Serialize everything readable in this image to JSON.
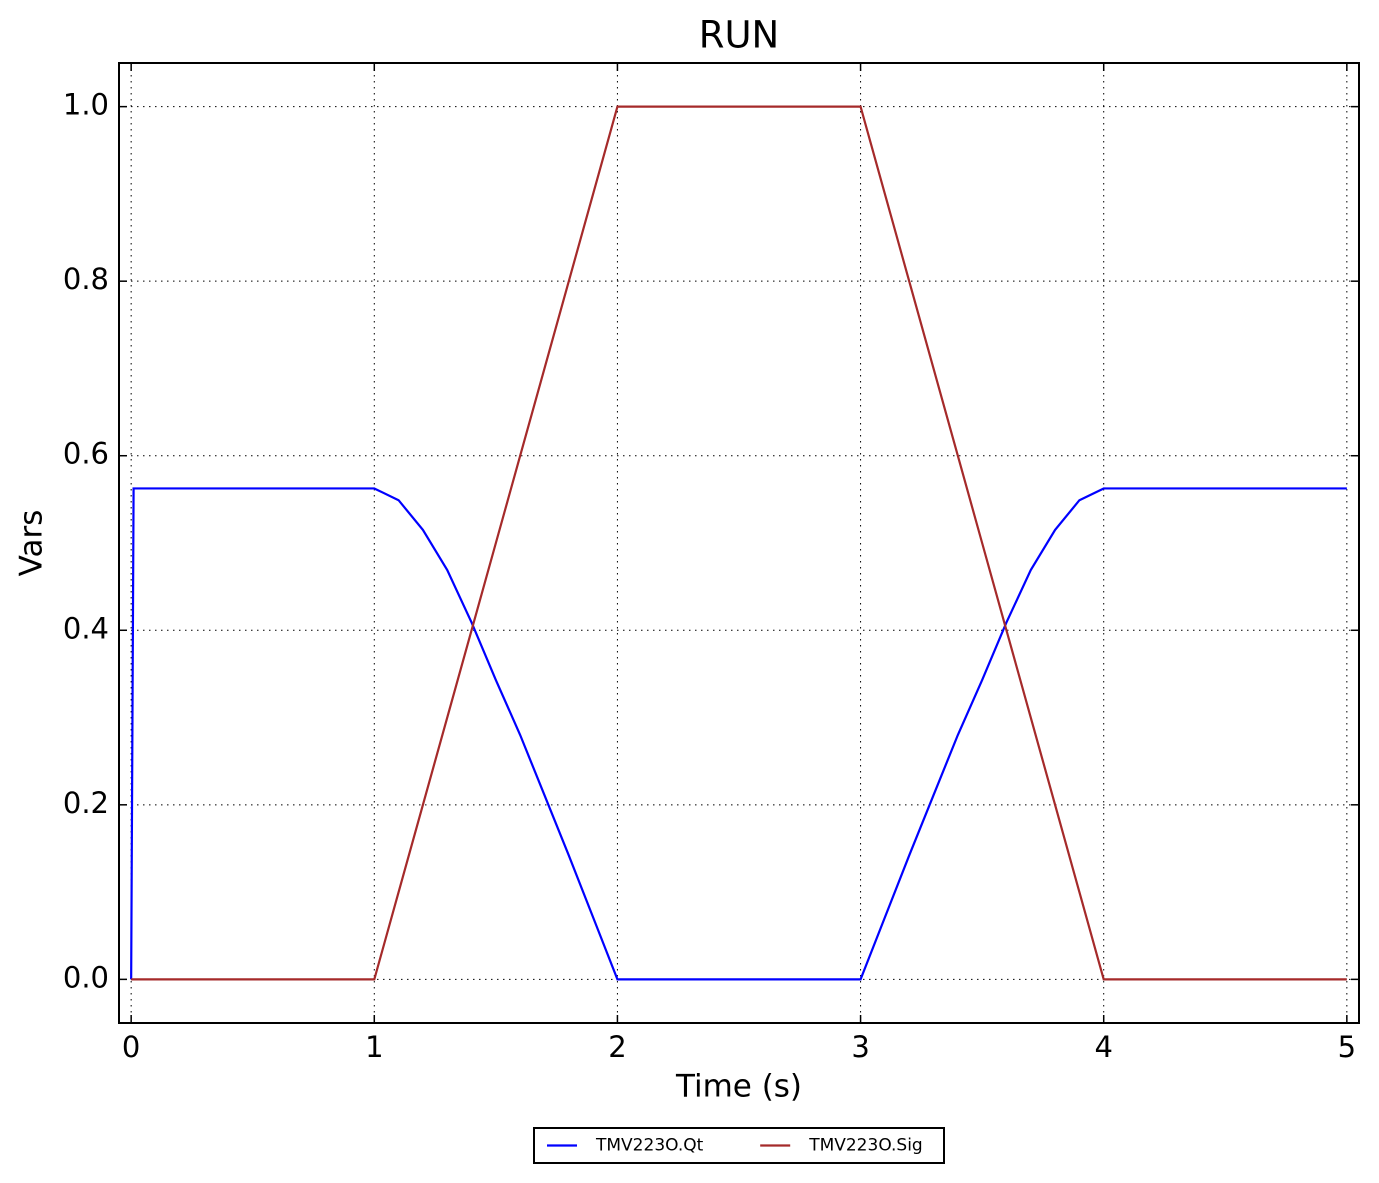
{
  "chart_data": {
    "type": "line",
    "title": "RUN",
    "xlabel": "Time (s)",
    "ylabel": "Vars",
    "x": [
      0,
      0.01,
      1,
      1.1,
      1.2,
      1.3,
      1.4,
      1.5,
      1.6,
      1.7,
      1.8,
      1.9,
      2,
      3,
      3.1,
      3.2,
      3.3,
      3.4,
      3.5,
      3.6,
      3.7,
      3.8,
      3.9,
      4,
      5
    ],
    "series": [
      {
        "name": "TMV223O.Qt",
        "color": "#0000ff",
        "values": [
          0,
          0.5625,
          0.5625,
          0.549,
          0.515,
          0.469,
          0.409,
          0.343,
          0.28,
          0.211,
          0.142,
          0.071,
          0,
          0,
          0.071,
          0.142,
          0.211,
          0.28,
          0.343,
          0.409,
          0.469,
          0.515,
          0.549,
          0.5625,
          0.5625
        ]
      },
      {
        "name": "TMV223O.Sig",
        "color": "#a52a2a",
        "values": [
          0,
          0,
          0,
          0.1,
          0.2,
          0.3,
          0.4,
          0.5,
          0.6,
          0.7,
          0.8,
          0.9,
          1,
          1,
          0.9,
          0.8,
          0.7,
          0.6,
          0.5,
          0.4,
          0.3,
          0.2,
          0.1,
          0,
          0
        ]
      }
    ],
    "xlim": [
      -0.05,
      5.05
    ],
    "ylim": [
      -0.05,
      1.05
    ],
    "xticks": [
      0,
      1,
      2,
      3,
      4,
      5
    ],
    "yticks": [
      {
        "value": 0,
        "label": "0.0"
      },
      0.2,
      0.4,
      0.6,
      0.8,
      {
        "value": 1,
        "label": "1.0"
      }
    ],
    "grid": true,
    "legend": "bottom"
  }
}
